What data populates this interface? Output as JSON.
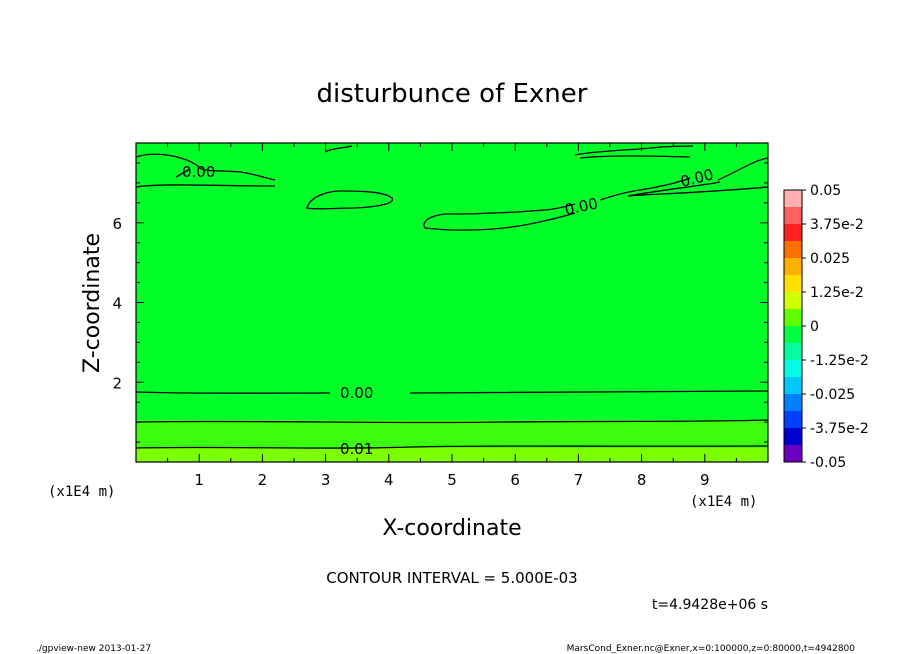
{
  "chart_data": {
    "type": "heatmap",
    "title": "disturbunce of Exner",
    "xlabel": "X-coordinate",
    "ylabel": "Z-coordinate",
    "x_unit": "(x1E4 m)",
    "y_unit": "(x1E4 m)",
    "xlim": [
      0,
      10
    ],
    "ylim": [
      0,
      8
    ],
    "xticks": [
      "1",
      "2",
      "3",
      "4",
      "5",
      "6",
      "7",
      "8",
      "9"
    ],
    "yticks": [
      "2",
      "4",
      "6"
    ],
    "colorbar": {
      "range": [
        -0.05,
        0.05
      ],
      "labels": [
        "0.05",
        "3.75e-2",
        "0.025",
        "1.25e-2",
        "0",
        "-1.25e-2",
        "-0.025",
        "-3.75e-2",
        "-0.05"
      ],
      "colors": [
        "#ffb0b0",
        "#ff6060",
        "#ff2020",
        "#ff7000",
        "#ffb000",
        "#ffe000",
        "#d0ff00",
        "#60ff00",
        "#00ff40",
        "#00ffa0",
        "#00ffe0",
        "#00c8ff",
        "#0080ff",
        "#0040ff",
        "#0000d0",
        "#6a00c0"
      ]
    },
    "contour_labels": [
      "0.00",
      "0.00",
      "0.00",
      "0.00",
      "0.01"
    ],
    "contour_interval_text": "CONTOUR INTERVAL = 5.000E-03",
    "time_text": "t=4.9428e+06 s"
  },
  "footer": {
    "left": "./gpview-new 2013-01-27",
    "right": "MarsCond_Exner.nc@Exner,x=0:100000,z=0:80000,t=4942800"
  }
}
